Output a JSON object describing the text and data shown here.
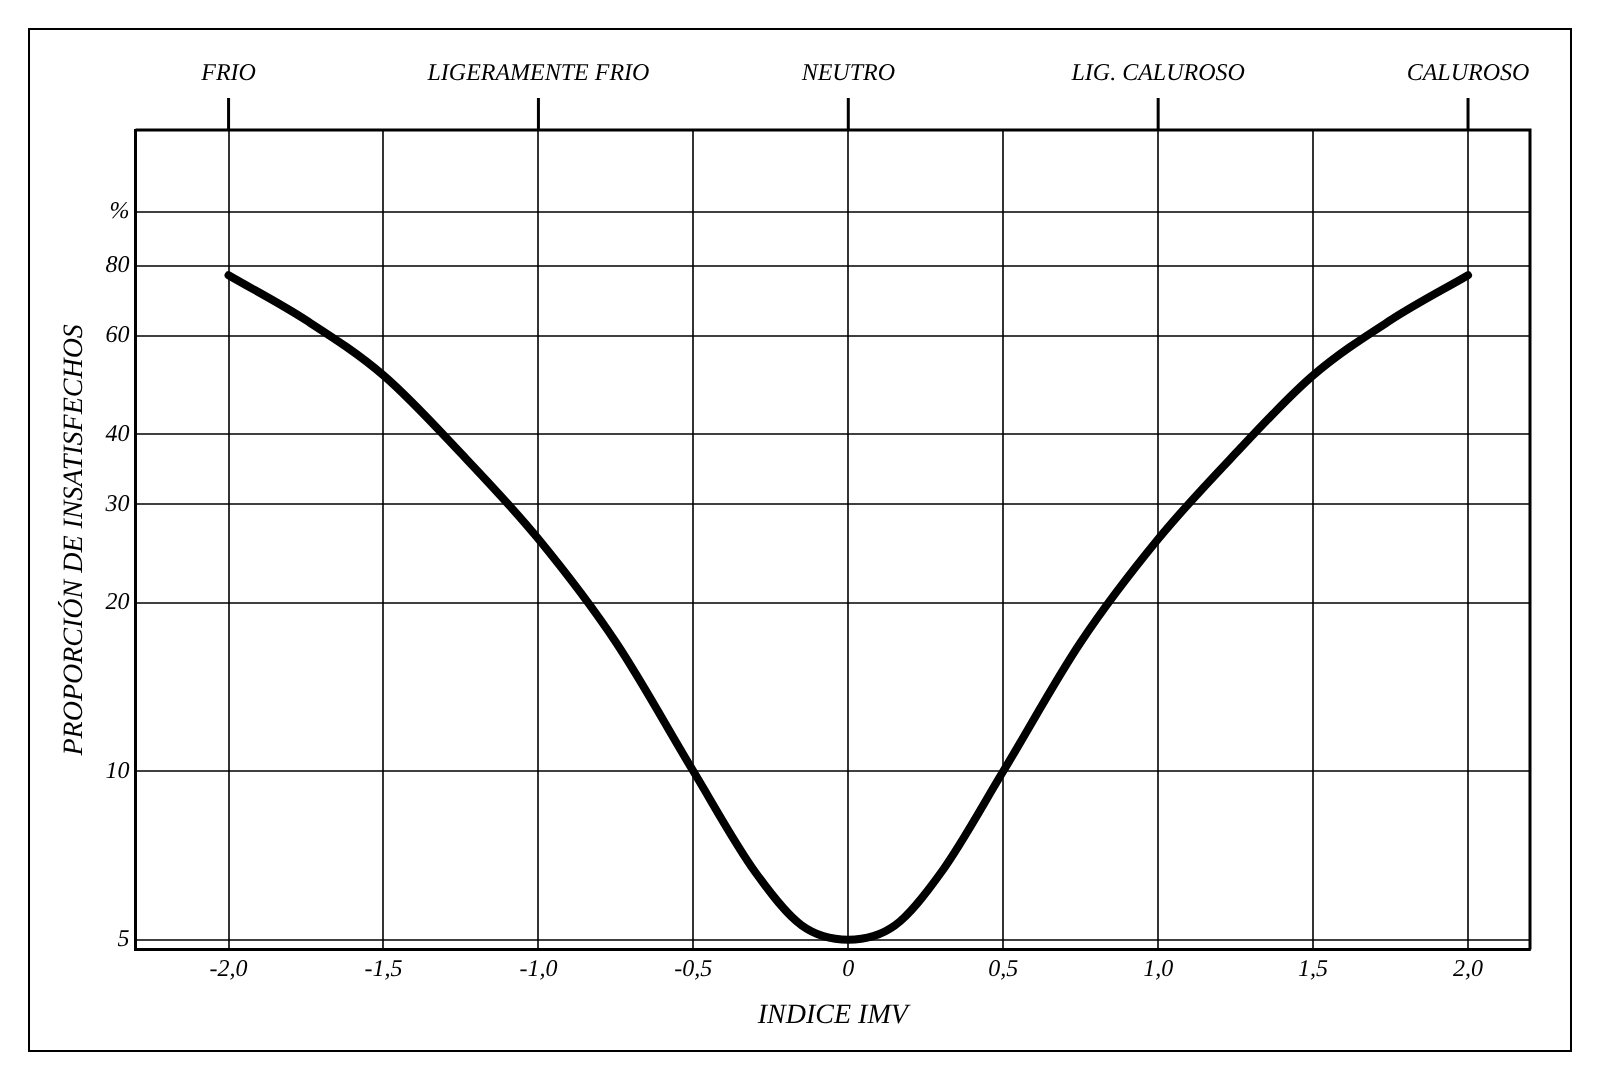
{
  "chart_data": {
    "type": "line",
    "xlabel": "INDICE IMV",
    "ylabel": "PROPORCIÓN DE INSATISFECHOS",
    "x": [
      -2,
      -1.75,
      -1.5,
      -1.25,
      -1,
      -0.75,
      -0.5,
      -0.3,
      -0.15,
      0,
      0.15,
      0.3,
      0.5,
      0.75,
      1,
      1.25,
      1.5,
      1.75,
      2
    ],
    "series": [
      {
        "color": "#000000",
        "values": [
          77,
          64,
          51,
          37,
          26,
          17,
          10,
          6.6,
          5.3,
          5,
          5.3,
          6.6,
          10,
          17,
          26,
          37,
          51,
          64,
          77
        ]
      }
    ],
    "log": "y",
    "marker": "none",
    "line_style": "solid",
    "legend": false,
    "grid": true,
    "xlim": [
      -2.3,
      2.2
    ],
    "xticks": [
      {
        "value": -2,
        "label": "-2,0"
      },
      {
        "value": -1.5,
        "label": "-1,5"
      },
      {
        "value": -1,
        "label": "-1,0"
      },
      {
        "value": -0.5,
        "label": "-0,5"
      },
      0,
      {
        "value": 0.5,
        "label": "0,5"
      },
      {
        "value": 1,
        "label": "1,0"
      },
      {
        "value": 1.5,
        "label": "1,5"
      },
      {
        "value": 2,
        "label": "2,0"
      }
    ],
    "annotations": [
      {
        "text": "FRIO",
        "x": -2
      },
      {
        "text": "LIGERAMENTE FRIO",
        "x": -1
      },
      {
        "text": "NEUTRO",
        "x": 0
      },
      {
        "text": "LIG. CALUROSO",
        "x": 1
      },
      {
        "text": "CALUROSO",
        "x": 2
      }
    ],
    "ylim": [
      4.8,
      140
    ],
    "yticks": [
      5,
      10,
      20,
      30,
      40,
      60,
      80,
      {
        "value": 100,
        "label": "%"
      }
    ]
  }
}
